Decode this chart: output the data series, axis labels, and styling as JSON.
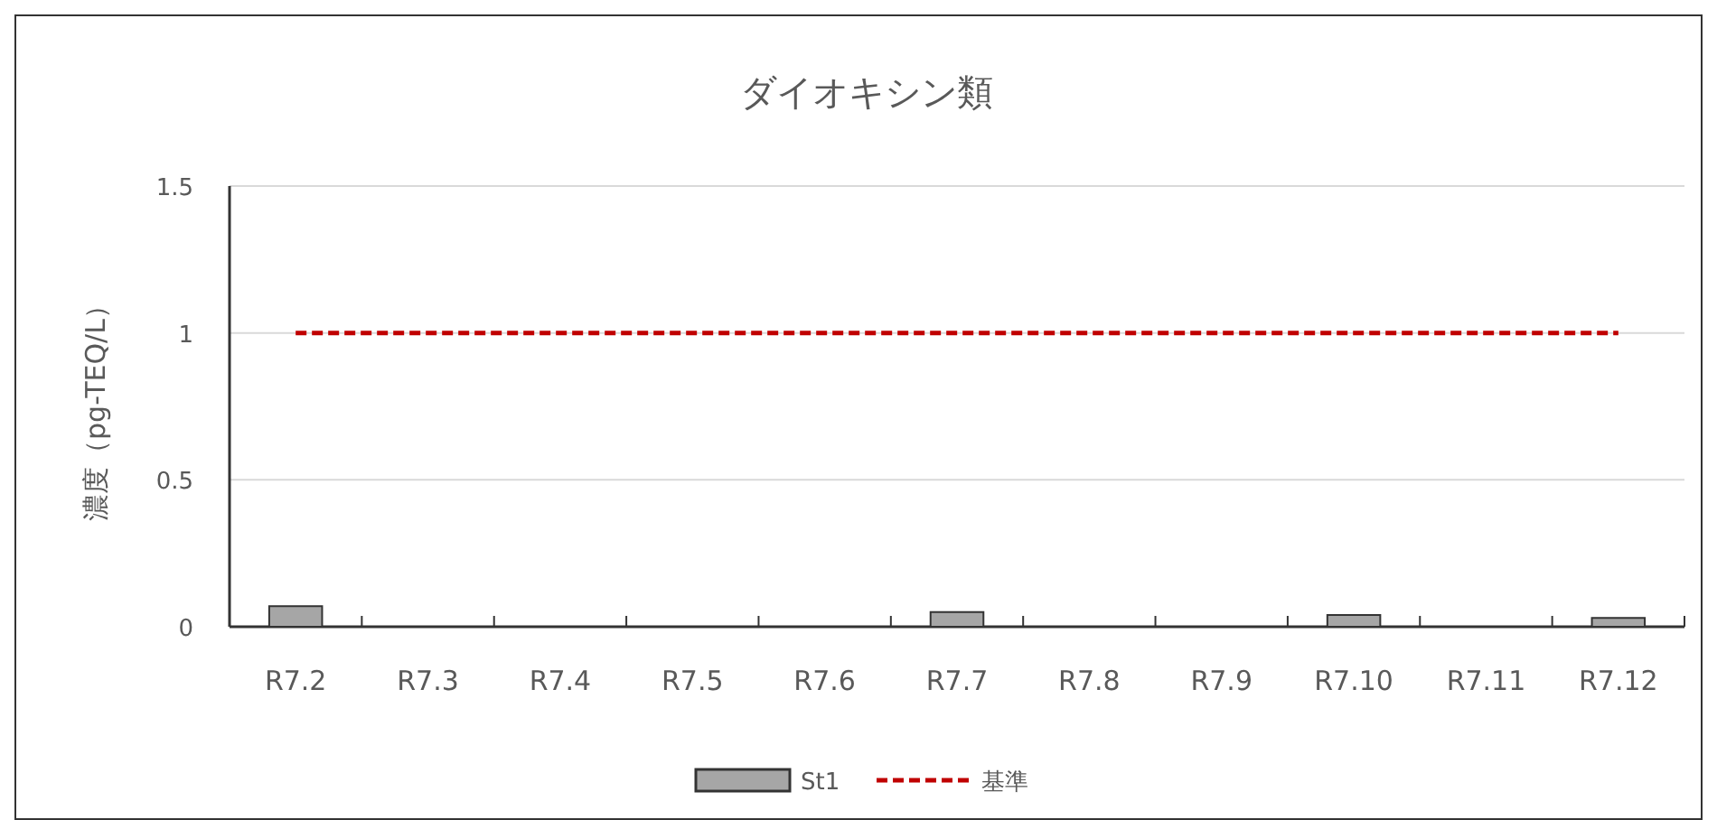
{
  "chart_data": {
    "type": "bar",
    "title": "ダイオキシン類",
    "ylabel": "濃度（pg-TEQ/L）",
    "categories": [
      "R7.2",
      "R7.3",
      "R7.4",
      "R7.5",
      "R7.6",
      "R7.7",
      "R7.8",
      "R7.9",
      "R7.10",
      "R7.11",
      "R7.12"
    ],
    "series": [
      {
        "name": "St1",
        "color": "#a6a6a6",
        "values": [
          0.07,
          null,
          null,
          null,
          null,
          0.05,
          null,
          null,
          0.04,
          null,
          0.03
        ]
      },
      {
        "name": "基準",
        "type": "line",
        "color": "#c00000",
        "line_style": "dashed",
        "values": [
          1,
          1,
          1,
          1,
          1,
          1,
          1,
          1,
          1,
          1,
          1
        ]
      }
    ],
    "ylim": [
      0,
      1.5
    ],
    "yticks": [
      0,
      0.5,
      1,
      1.5
    ],
    "grid": "y",
    "legend": "bottom"
  }
}
